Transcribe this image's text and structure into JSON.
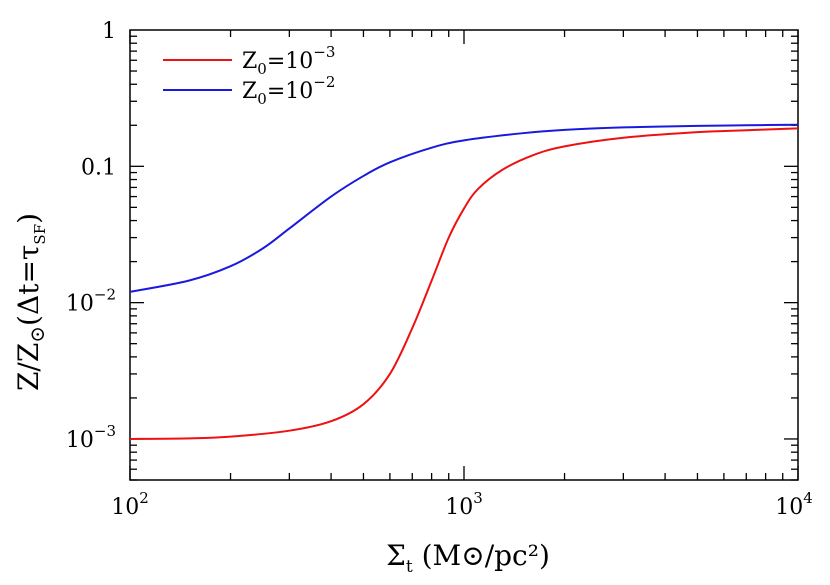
{
  "chart_data": {
    "type": "line",
    "title": "",
    "xlabel": "Σ_t (M⊙/pc²)",
    "ylabel": "Z/Z⊙(Δt=τ_SF)",
    "xscale": "log",
    "yscale": "log",
    "xlim": [
      100,
      10000
    ],
    "ylim": [
      0.0005,
      1
    ],
    "grid": false,
    "legend_position": "top-left",
    "x_ticks": [
      {
        "value": 100,
        "base": "10",
        "exp": "2"
      },
      {
        "value": 1000,
        "base": "10",
        "exp": "3"
      },
      {
        "value": 10000,
        "base": "10",
        "exp": "4"
      }
    ],
    "y_ticks": [
      {
        "value": 0.001,
        "text": "",
        "base": "10",
        "exp": "−3"
      },
      {
        "value": 0.01,
        "text": "",
        "base": "10",
        "exp": "−2"
      },
      {
        "value": 0.1,
        "text": "0.1",
        "base": "",
        "exp": ""
      },
      {
        "value": 1,
        "text": "1",
        "base": "",
        "exp": ""
      }
    ],
    "series": [
      {
        "name": "Z0=10−3",
        "legend_base": "Z",
        "legend_sub": "0",
        "legend_value": "=10",
        "legend_exp": "−3",
        "color": "#ee1111",
        "x": [
          100,
          150,
          200,
          300,
          400,
          500,
          600,
          700,
          800,
          900,
          1000,
          1100,
          1300,
          1600,
          2000,
          3000,
          5000,
          7000,
          10000
        ],
        "y": [
          0.001,
          0.00101,
          0.00104,
          0.00115,
          0.00135,
          0.0018,
          0.003,
          0.0065,
          0.0145,
          0.03,
          0.049,
          0.068,
          0.094,
          0.12,
          0.14,
          0.162,
          0.178,
          0.184,
          0.19
        ]
      },
      {
        "name": "Z0=10−2",
        "legend_base": "Z",
        "legend_sub": "0",
        "legend_value": "=10",
        "legend_exp": "−2",
        "color": "#1a1adf",
        "x": [
          100,
          150,
          200,
          250,
          300,
          400,
          500,
          600,
          800,
          1000,
          1500,
          2000,
          3000,
          5000,
          7000,
          10000
        ],
        "y": [
          0.012,
          0.0145,
          0.0185,
          0.025,
          0.035,
          0.06,
          0.085,
          0.107,
          0.137,
          0.155,
          0.175,
          0.185,
          0.193,
          0.198,
          0.2,
          0.202
        ]
      }
    ]
  }
}
